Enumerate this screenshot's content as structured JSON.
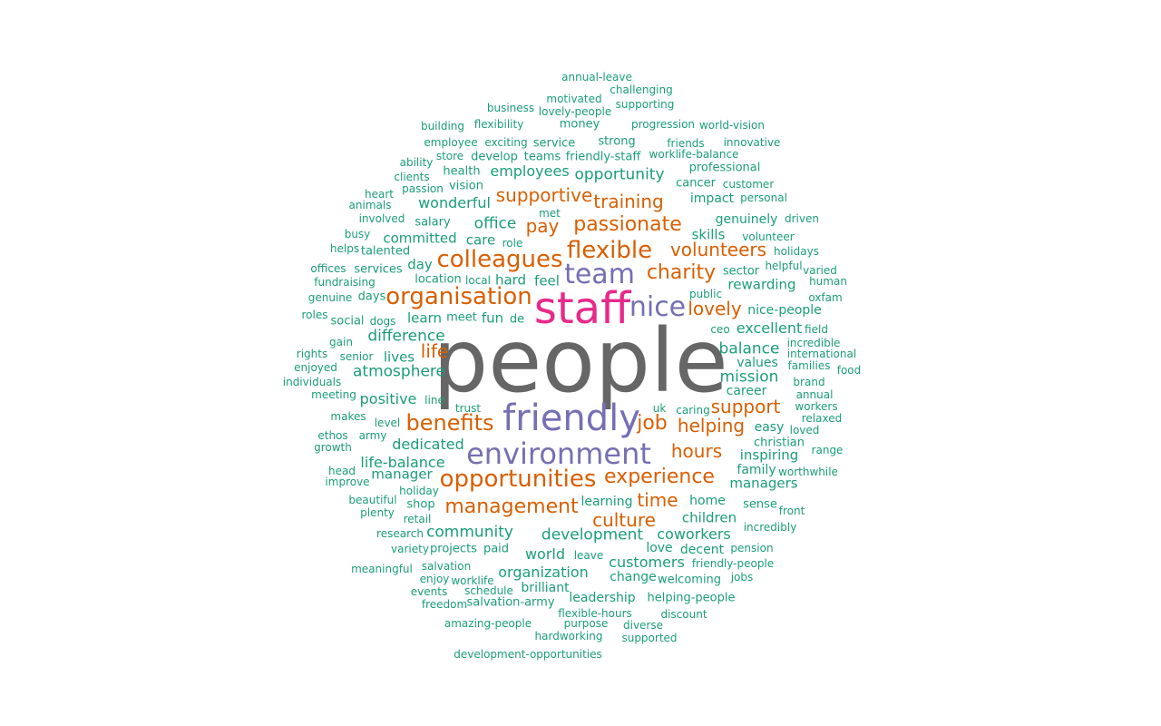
{
  "palette": {
    "green": "#1b9e77",
    "orange": "#d95f02",
    "purple": "#7570b3",
    "pink": "#e7298a",
    "gray": "#666666"
  },
  "words": [
    {
      "text": "people",
      "color": "gray"
    },
    {
      "text": "staff",
      "color": "pink"
    },
    {
      "text": "friendly",
      "color": "purple"
    },
    {
      "text": "environment",
      "color": "purple"
    },
    {
      "text": "team",
      "color": "purple"
    },
    {
      "text": "nice",
      "color": "purple"
    },
    {
      "text": "opportunities",
      "color": "orange"
    },
    {
      "text": "colleagues",
      "color": "orange"
    },
    {
      "text": "organisation",
      "color": "orange"
    },
    {
      "text": "flexible",
      "color": "orange"
    },
    {
      "text": "benefits",
      "color": "orange"
    },
    {
      "text": "management",
      "color": "orange"
    },
    {
      "text": "experience",
      "color": "orange"
    },
    {
      "text": "passionate",
      "color": "orange"
    },
    {
      "text": "charity",
      "color": "orange"
    },
    {
      "text": "job",
      "color": "orange"
    },
    {
      "text": "supportive",
      "color": "orange"
    },
    {
      "text": "helping",
      "color": "orange"
    },
    {
      "text": "culture",
      "color": "orange"
    },
    {
      "text": "hours",
      "color": "orange"
    },
    {
      "text": "volunteers",
      "color": "orange"
    },
    {
      "text": "training",
      "color": "orange"
    },
    {
      "text": "lovely",
      "color": "orange"
    },
    {
      "text": "time",
      "color": "orange"
    },
    {
      "text": "support",
      "color": "orange"
    },
    {
      "text": "pay",
      "color": "orange"
    },
    {
      "text": "life",
      "color": "orange"
    },
    {
      "text": "development",
      "color": "green"
    },
    {
      "text": "atmosphere",
      "color": "green"
    },
    {
      "text": "mission",
      "color": "green"
    },
    {
      "text": "difference",
      "color": "green"
    },
    {
      "text": "opportunity",
      "color": "green"
    },
    {
      "text": "community",
      "color": "green"
    },
    {
      "text": "balance",
      "color": "green"
    },
    {
      "text": "organization",
      "color": "green"
    },
    {
      "text": "customers",
      "color": "green"
    },
    {
      "text": "coworkers",
      "color": "green"
    },
    {
      "text": "office",
      "color": "green"
    },
    {
      "text": "dedicated",
      "color": "green"
    },
    {
      "text": "positive",
      "color": "green"
    },
    {
      "text": "employees",
      "color": "green"
    },
    {
      "text": "wonderful",
      "color": "green"
    },
    {
      "text": "excellent",
      "color": "green"
    },
    {
      "text": "life-balance",
      "color": "green"
    },
    {
      "text": "world",
      "color": "green"
    },
    {
      "text": "managers",
      "color": "green"
    },
    {
      "text": "committed",
      "color": "green"
    },
    {
      "text": "children",
      "color": "green"
    },
    {
      "text": "rewarding",
      "color": "green"
    },
    {
      "text": "inspiring",
      "color": "green"
    },
    {
      "text": "lives",
      "color": "green"
    },
    {
      "text": "manager",
      "color": "green"
    },
    {
      "text": "care",
      "color": "green"
    },
    {
      "text": "learn",
      "color": "green"
    },
    {
      "text": "skills",
      "color": "green"
    },
    {
      "text": "day",
      "color": "green"
    },
    {
      "text": "fun",
      "color": "green"
    },
    {
      "text": "hard",
      "color": "green"
    },
    {
      "text": "feel",
      "color": "green"
    },
    {
      "text": "easy",
      "color": "green"
    },
    {
      "text": "genuinely",
      "color": "green"
    },
    {
      "text": "values",
      "color": "green"
    },
    {
      "text": "professional",
      "color": "green"
    },
    {
      "text": "impact",
      "color": "green"
    },
    {
      "text": "love",
      "color": "green"
    },
    {
      "text": "decent",
      "color": "green"
    },
    {
      "text": "leadership",
      "color": "green"
    },
    {
      "text": "brilliant",
      "color": "green"
    },
    {
      "text": "change",
      "color": "green"
    },
    {
      "text": "learning",
      "color": "green"
    },
    {
      "text": "career",
      "color": "green"
    },
    {
      "text": "family",
      "color": "green"
    },
    {
      "text": "home",
      "color": "green"
    },
    {
      "text": "nice-people",
      "color": "green"
    },
    {
      "text": "health",
      "color": "green"
    },
    {
      "text": "vision",
      "color": "green"
    },
    {
      "text": "salary",
      "color": "green"
    },
    {
      "text": "service",
      "color": "green"
    },
    {
      "text": "strong",
      "color": "green"
    },
    {
      "text": "meet",
      "color": "green"
    },
    {
      "text": "location",
      "color": "green"
    },
    {
      "text": "services",
      "color": "green"
    },
    {
      "text": "talented",
      "color": "green"
    },
    {
      "text": "days",
      "color": "green"
    },
    {
      "text": "social",
      "color": "green"
    },
    {
      "text": "shop",
      "color": "green"
    },
    {
      "text": "projects",
      "color": "green"
    },
    {
      "text": "paid",
      "color": "green"
    },
    {
      "text": "sector",
      "color": "green"
    },
    {
      "text": "christian",
      "color": "green"
    },
    {
      "text": "sense",
      "color": "green"
    },
    {
      "text": "welcoming",
      "color": "green"
    },
    {
      "text": "helping-people",
      "color": "green"
    },
    {
      "text": "friendly-people",
      "color": "green"
    },
    {
      "text": "customer",
      "color": "green"
    },
    {
      "text": "cancer",
      "color": "green"
    },
    {
      "text": "personal",
      "color": "green"
    },
    {
      "text": "innovative",
      "color": "green"
    },
    {
      "text": "worklife-balance",
      "color": "green"
    },
    {
      "text": "friends",
      "color": "green"
    },
    {
      "text": "progression",
      "color": "green"
    },
    {
      "text": "world-vision",
      "color": "green"
    },
    {
      "text": "challenging",
      "color": "green"
    },
    {
      "text": "annual-leave",
      "color": "green"
    },
    {
      "text": "motivated",
      "color": "green"
    },
    {
      "text": "lovely-people",
      "color": "green"
    },
    {
      "text": "supporting",
      "color": "green"
    },
    {
      "text": "business",
      "color": "green"
    },
    {
      "text": "flexibility",
      "color": "green"
    },
    {
      "text": "money",
      "color": "green"
    },
    {
      "text": "building",
      "color": "green"
    },
    {
      "text": "employee",
      "color": "green"
    },
    {
      "text": "exciting",
      "color": "green"
    },
    {
      "text": "develop",
      "color": "green"
    },
    {
      "text": "teams",
      "color": "green"
    },
    {
      "text": "friendly-staff",
      "color": "green"
    },
    {
      "text": "store",
      "color": "green"
    },
    {
      "text": "ability",
      "color": "green"
    },
    {
      "text": "clients",
      "color": "green"
    },
    {
      "text": "passion",
      "color": "green"
    },
    {
      "text": "heart",
      "color": "green"
    },
    {
      "text": "animals",
      "color": "green"
    },
    {
      "text": "involved",
      "color": "green"
    },
    {
      "text": "met",
      "color": "green"
    },
    {
      "text": "busy",
      "color": "green"
    },
    {
      "text": "role",
      "color": "green"
    },
    {
      "text": "helps",
      "color": "green"
    },
    {
      "text": "offices",
      "color": "green"
    },
    {
      "text": "fundraising",
      "color": "green"
    },
    {
      "text": "genuine",
      "color": "green"
    },
    {
      "text": "local",
      "color": "green"
    },
    {
      "text": "roles",
      "color": "green"
    },
    {
      "text": "dogs",
      "color": "green"
    },
    {
      "text": "de",
      "color": "green"
    },
    {
      "text": "gain",
      "color": "green"
    },
    {
      "text": "rights",
      "color": "green"
    },
    {
      "text": "senior",
      "color": "green"
    },
    {
      "text": "enjoyed",
      "color": "green"
    },
    {
      "text": "individuals",
      "color": "green"
    },
    {
      "text": "meeting",
      "color": "green"
    },
    {
      "text": "line",
      "color": "green"
    },
    {
      "text": "trust",
      "color": "green"
    },
    {
      "text": "makes",
      "color": "green"
    },
    {
      "text": "level",
      "color": "green"
    },
    {
      "text": "ethos",
      "color": "green"
    },
    {
      "text": "army",
      "color": "green"
    },
    {
      "text": "growth",
      "color": "green"
    },
    {
      "text": "head",
      "color": "green"
    },
    {
      "text": "improve",
      "color": "green"
    },
    {
      "text": "beautiful",
      "color": "green"
    },
    {
      "text": "holiday",
      "color": "green"
    },
    {
      "text": "plenty",
      "color": "green"
    },
    {
      "text": "retail",
      "color": "green"
    },
    {
      "text": "research",
      "color": "green"
    },
    {
      "text": "variety",
      "color": "green"
    },
    {
      "text": "meaningful",
      "color": "green"
    },
    {
      "text": "salvation",
      "color": "green"
    },
    {
      "text": "enjoy",
      "color": "green"
    },
    {
      "text": "worklife",
      "color": "green"
    },
    {
      "text": "events",
      "color": "green"
    },
    {
      "text": "schedule",
      "color": "green"
    },
    {
      "text": "freedom",
      "color": "green"
    },
    {
      "text": "salvation-army",
      "color": "green"
    },
    {
      "text": "amazing-people",
      "color": "green"
    },
    {
      "text": "purpose",
      "color": "green"
    },
    {
      "text": "flexible-hours",
      "color": "green"
    },
    {
      "text": "diverse",
      "color": "green"
    },
    {
      "text": "discount",
      "color": "green"
    },
    {
      "text": "hardworking",
      "color": "green"
    },
    {
      "text": "supported",
      "color": "green"
    },
    {
      "text": "development-opportunities",
      "color": "green"
    },
    {
      "text": "leave",
      "color": "green"
    },
    {
      "text": "jobs",
      "color": "green"
    },
    {
      "text": "pension",
      "color": "green"
    },
    {
      "text": "incredibly",
      "color": "green"
    },
    {
      "text": "front",
      "color": "green"
    },
    {
      "text": "worthwhile",
      "color": "green"
    },
    {
      "text": "range",
      "color": "green"
    },
    {
      "text": "loved",
      "color": "green"
    },
    {
      "text": "relaxed",
      "color": "green"
    },
    {
      "text": "workers",
      "color": "green"
    },
    {
      "text": "annual",
      "color": "green"
    },
    {
      "text": "brand",
      "color": "green"
    },
    {
      "text": "food",
      "color": "green"
    },
    {
      "text": "families",
      "color": "green"
    },
    {
      "text": "international",
      "color": "green"
    },
    {
      "text": "incredible",
      "color": "green"
    },
    {
      "text": "field",
      "color": "green"
    },
    {
      "text": "ceo",
      "color": "green"
    },
    {
      "text": "public",
      "color": "green"
    },
    {
      "text": "oxfam",
      "color": "green"
    },
    {
      "text": "human",
      "color": "green"
    },
    {
      "text": "varied",
      "color": "green"
    },
    {
      "text": "helpful",
      "color": "green"
    },
    {
      "text": "holidays",
      "color": "green"
    },
    {
      "text": "volunteer",
      "color": "green"
    },
    {
      "text": "driven",
      "color": "green"
    },
    {
      "text": "caring",
      "color": "green"
    },
    {
      "text": "uk",
      "color": "green"
    }
  ]
}
